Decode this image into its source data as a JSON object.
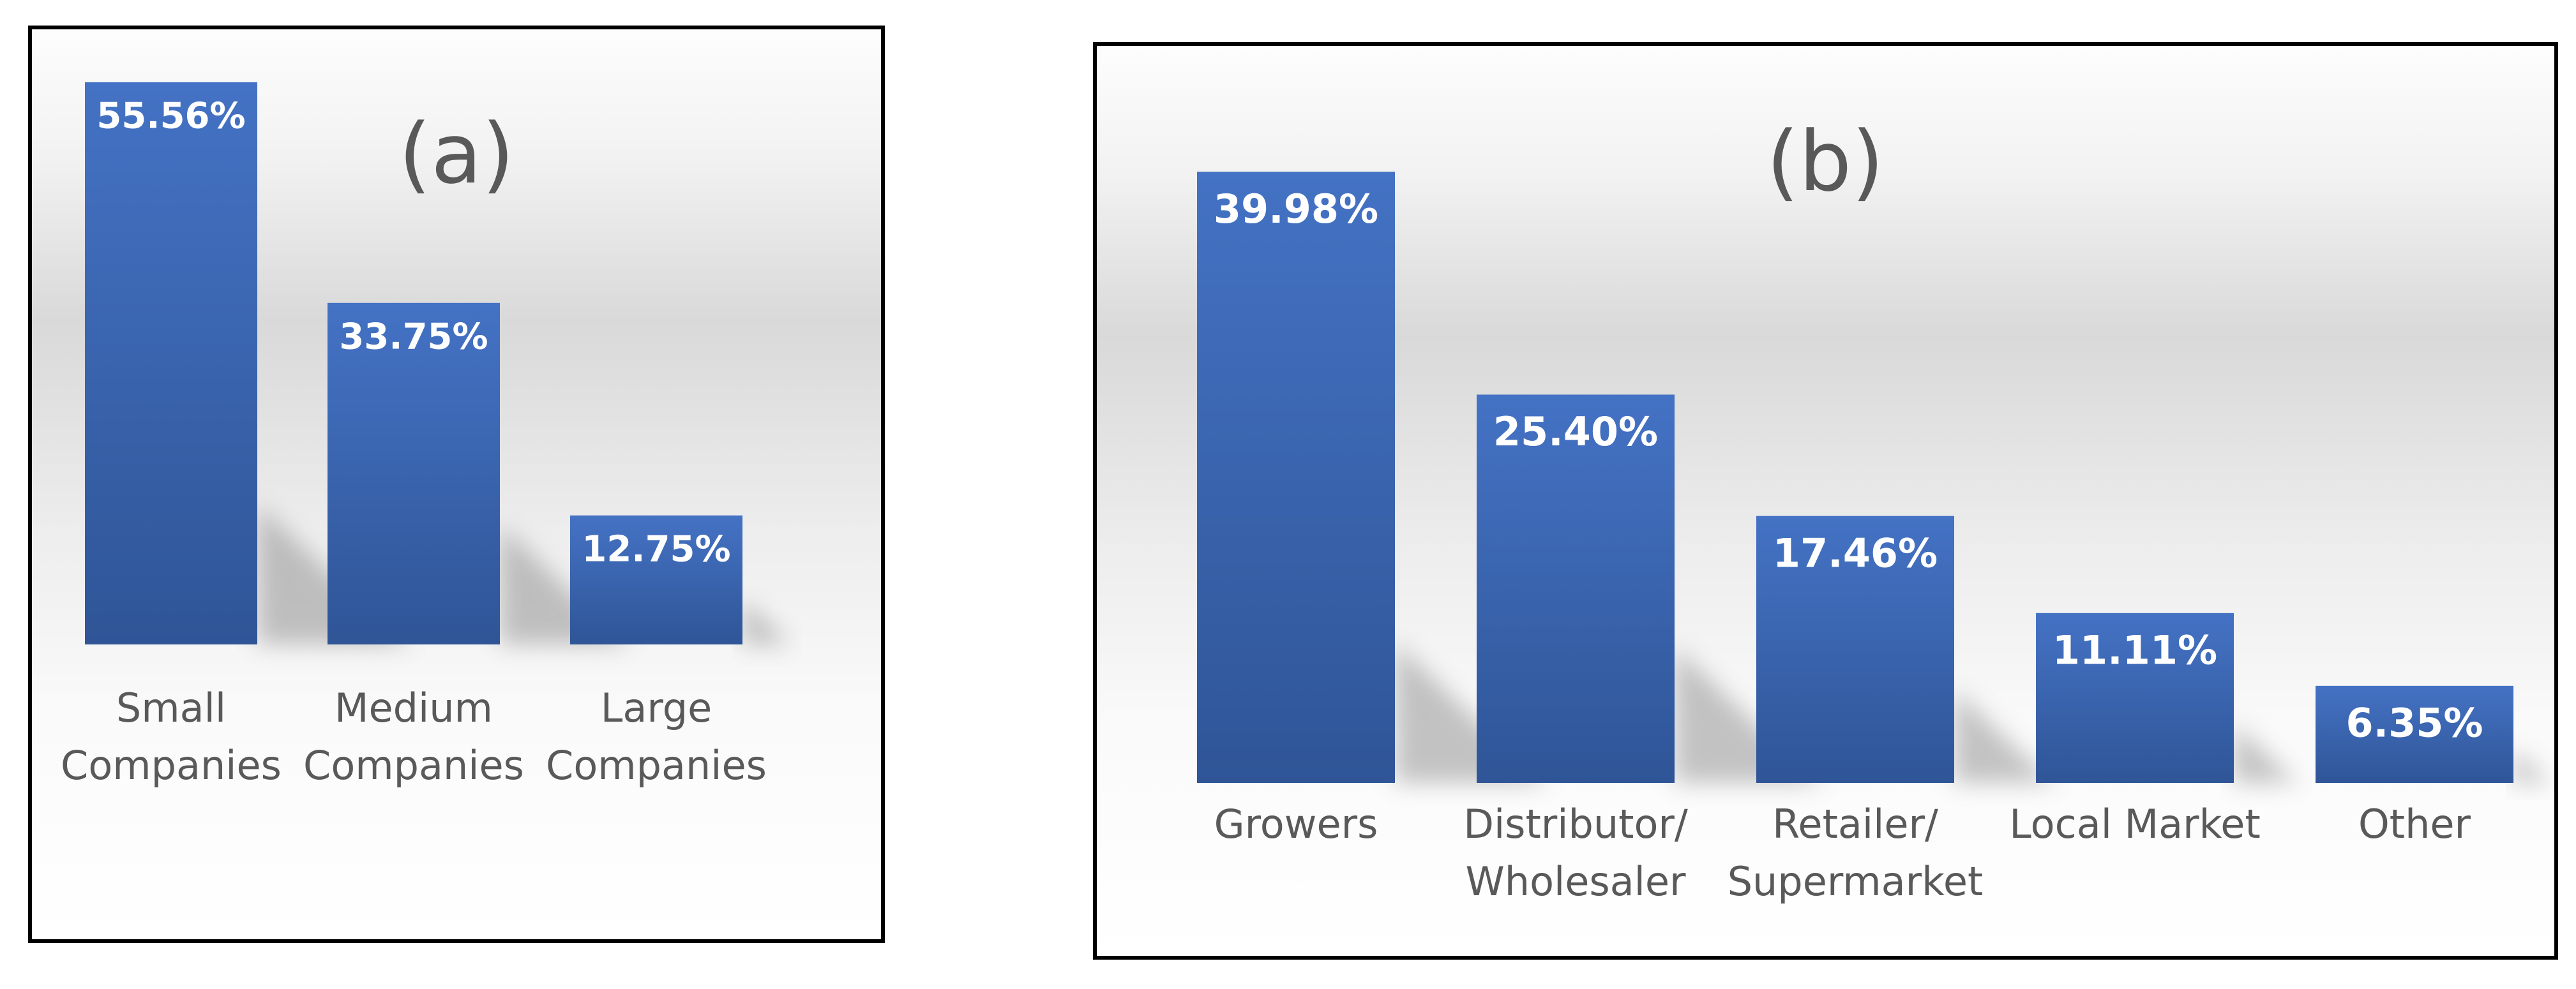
{
  "chart_data": [
    {
      "type": "bar",
      "title": "(a)",
      "categories": [
        [
          "Small",
          "Companies"
        ],
        [
          "Medium",
          "Companies"
        ],
        [
          "Large",
          "Companies"
        ]
      ],
      "values": [
        55.56,
        33.75,
        12.75
      ],
      "value_labels": [
        "55.56%",
        "33.75%",
        "12.75%"
      ],
      "ylim": [
        0,
        56.5
      ],
      "grid": false,
      "legend": "none",
      "colors": {
        "bar_top": "#4472c4",
        "bar_bottom": "#2f5597",
        "text": "#595959"
      }
    },
    {
      "type": "bar",
      "title": "(b)",
      "categories": [
        [
          "Growers"
        ],
        [
          "Distributor/",
          "Wholesaler"
        ],
        [
          "Retailer/",
          "Supermarket"
        ],
        [
          "Local Market"
        ],
        [
          "Other"
        ]
      ],
      "values": [
        39.98,
        25.4,
        17.46,
        11.11,
        6.35
      ],
      "value_labels": [
        "39.98%",
        "25.40%",
        "17.46%",
        "11.11%",
        "6.35%"
      ],
      "ylim": [
        0,
        43.7
      ],
      "grid": false,
      "legend": "none",
      "colors": {
        "bar_top": "#4472c4",
        "bar_bottom": "#2f5597",
        "text": "#595959"
      }
    }
  ]
}
